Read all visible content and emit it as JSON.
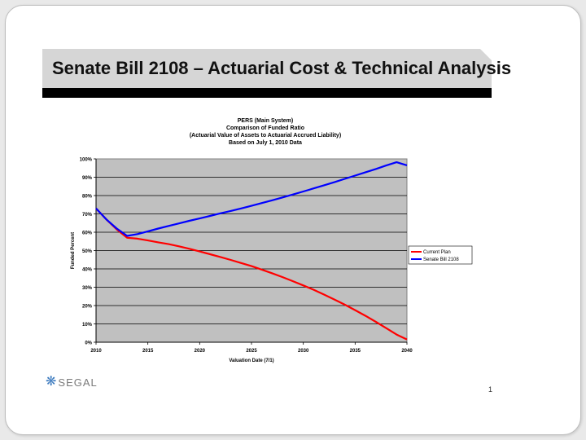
{
  "slide": {
    "title": "Senate Bill 2108 – Actuarial Cost & Technical Analysis",
    "logo_text": "SEGAL",
    "page_number": "1"
  },
  "colors": {
    "banner": "#d6d6d6",
    "plot_background": "#c0c0c0",
    "current_plan": "#ff0000",
    "senate_bill": "#0000ff"
  },
  "chart_data": {
    "type": "line",
    "title_lines": [
      "PERS (Main System)",
      "Comparison of Funded Ratio",
      "(Actuarial Value of Assets to Actuarial Accrued Liability)",
      "Based on July 1, 2010 Data"
    ],
    "xlabel": "Valuation Date (7/1)",
    "ylabel": "Funded Percent",
    "x": [
      2010,
      2011,
      2012,
      2013,
      2014,
      2015,
      2016,
      2017,
      2018,
      2019,
      2020,
      2021,
      2022,
      2023,
      2024,
      2025,
      2026,
      2027,
      2028,
      2029,
      2030,
      2031,
      2032,
      2033,
      2034,
      2035,
      2036,
      2037,
      2038,
      2039,
      2040
    ],
    "xlim": [
      2010,
      2040
    ],
    "ylim": [
      0,
      100
    ],
    "xticks": [
      "2010",
      "2015",
      "2020",
      "2025",
      "2030",
      "2035",
      "2040"
    ],
    "yticks": [
      "0%",
      "10%",
      "20%",
      "30%",
      "40%",
      "50%",
      "60%",
      "70%",
      "80%",
      "90%",
      "100%"
    ],
    "series": [
      {
        "name": "Current Plan",
        "values": [
          73,
          67,
          61.5,
          57,
          56.5,
          55.5,
          54.5,
          53.5,
          52.3,
          51,
          49.5,
          48,
          46.5,
          44.9,
          43.2,
          41.5,
          39.6,
          37.6,
          35.5,
          33.3,
          31,
          28.6,
          26,
          23.3,
          20.5,
          17.5,
          14.4,
          11.1,
          7.7,
          4.2,
          1.5
        ]
      },
      {
        "name": "Senate Bill 2108",
        "values": [
          73,
          67,
          62,
          58,
          59,
          60.5,
          62,
          63.4,
          64.8,
          66.2,
          67.5,
          68.9,
          70.3,
          71.6,
          73,
          74.4,
          75.9,
          77.4,
          79,
          80.6,
          82.2,
          83.9,
          85.6,
          87.3,
          89.1,
          90.9,
          92.7,
          94.5,
          96.4,
          98.2,
          96.5
        ]
      }
    ],
    "grid": true,
    "legend_position": "right"
  }
}
